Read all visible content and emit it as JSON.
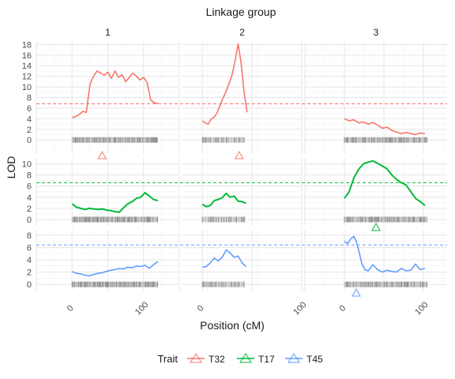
{
  "chart_data": {
    "type": "line",
    "title": "Linkage group",
    "xlabel": "Position (cM)",
    "ylabel": "LOD",
    "legend": {
      "title": "Trait",
      "position": "bottom",
      "entries": [
        {
          "name": "T32",
          "color": "#F8766D"
        },
        {
          "name": "T17",
          "color": "#00BA38"
        },
        {
          "name": "T45",
          "color": "#619CFF"
        }
      ]
    },
    "grid": true,
    "facets": {
      "columns": [
        {
          "label": "1",
          "xlim": [
            -50,
            150
          ],
          "x_ticks": [
            0,
            100
          ],
          "marker_range": [
            0,
            120
          ]
        },
        {
          "label": "2",
          "xlim": [
            -20,
            100
          ],
          "x_ticks": [
            0,
            100
          ],
          "marker_range": [
            0,
            43
          ]
        },
        {
          "label": "3",
          "xlim": [
            -50,
            130
          ],
          "x_ticks": [
            0,
            100
          ],
          "marker_range": [
            0,
            105
          ]
        }
      ],
      "rows": [
        {
          "trait": "T32",
          "ylim": [
            -2.5,
            18.5
          ],
          "y_ticks": [
            0,
            2,
            4,
            6,
            8,
            10,
            12,
            14,
            16,
            18
          ],
          "threshold": 6.8
        },
        {
          "trait": "T17",
          "ylim": [
            -1.0,
            11.2
          ],
          "y_ticks": [
            0,
            2,
            4,
            6,
            8,
            10
          ],
          "threshold": 6.6
        },
        {
          "trait": "T45",
          "ylim": [
            -1.0,
            9.0
          ],
          "y_ticks": [
            0,
            2,
            4,
            6,
            8
          ],
          "threshold": 6.4
        }
      ]
    },
    "series": [
      {
        "name": "T32",
        "group": "1",
        "x": [
          0,
          5,
          10,
          15,
          20,
          25,
          30,
          35,
          40,
          45,
          50,
          55,
          60,
          65,
          70,
          75,
          80,
          85,
          90,
          95,
          100,
          105,
          110,
          115,
          120
        ],
        "values": [
          4.2,
          4.4,
          4.8,
          5.4,
          5.2,
          10.5,
          12.0,
          13.0,
          12.6,
          12.2,
          12.8,
          11.6,
          13.0,
          11.8,
          12.3,
          11.0,
          11.8,
          12.6,
          12.0,
          11.3,
          11.8,
          10.8,
          7.5,
          7.0,
          6.9
        ]
      },
      {
        "name": "T32",
        "group": "2",
        "x": [
          0,
          3,
          6,
          9,
          12,
          15,
          18,
          21,
          24,
          27,
          30,
          33,
          36,
          39,
          42,
          45
        ],
        "values": [
          3.6,
          3.2,
          3.0,
          4.0,
          4.3,
          5.2,
          6.6,
          8.0,
          9.2,
          10.7,
          12.3,
          15.0,
          18.1,
          14.5,
          9.0,
          5.2
        ]
      },
      {
        "name": "T32",
        "group": "3",
        "x": [
          0,
          6,
          12,
          18,
          24,
          30,
          36,
          42,
          48,
          54,
          60,
          66,
          72,
          78,
          84,
          90,
          96,
          102
        ],
        "values": [
          4.0,
          3.6,
          3.8,
          3.2,
          3.4,
          3.0,
          3.3,
          2.8,
          2.2,
          2.4,
          1.8,
          1.5,
          1.2,
          1.4,
          1.2,
          1.0,
          1.3,
          1.2
        ]
      },
      {
        "name": "T17",
        "group": "1",
        "x": [
          0,
          6,
          12,
          18,
          24,
          30,
          36,
          42,
          48,
          54,
          60,
          66,
          72,
          78,
          84,
          90,
          96,
          102,
          108,
          114,
          120
        ],
        "values": [
          2.8,
          2.2,
          2.0,
          1.8,
          2.0,
          1.9,
          1.8,
          1.9,
          1.7,
          1.6,
          1.4,
          1.3,
          2.1,
          2.8,
          3.2,
          3.8,
          4.0,
          4.8,
          4.2,
          3.6,
          3.4
        ]
      },
      {
        "name": "T17",
        "group": "2",
        "x": [
          0,
          4,
          8,
          12,
          16,
          20,
          24,
          28,
          32,
          36,
          40,
          44
        ],
        "values": [
          2.7,
          2.3,
          2.5,
          3.4,
          3.6,
          3.9,
          4.7,
          4.0,
          4.2,
          3.3,
          3.2,
          2.9
        ]
      },
      {
        "name": "T17",
        "group": "3",
        "x": [
          0,
          6,
          12,
          18,
          24,
          30,
          36,
          42,
          48,
          54,
          60,
          66,
          72,
          78,
          84,
          90,
          96,
          102
        ],
        "values": [
          3.8,
          5.0,
          7.5,
          9.0,
          10.0,
          10.3,
          10.5,
          10.1,
          9.6,
          9.1,
          8.0,
          7.2,
          6.6,
          6.2,
          5.0,
          3.8,
          3.2,
          2.5
        ]
      },
      {
        "name": "T45",
        "group": "1",
        "x": [
          0,
          6,
          12,
          18,
          24,
          30,
          36,
          42,
          48,
          54,
          60,
          66,
          72,
          78,
          84,
          90,
          96,
          102,
          108,
          114,
          120
        ],
        "values": [
          2.1,
          1.8,
          1.7,
          1.5,
          1.4,
          1.6,
          1.8,
          1.9,
          2.1,
          2.3,
          2.4,
          2.6,
          2.5,
          2.8,
          2.7,
          3.0,
          2.9,
          3.1,
          2.6,
          3.2,
          3.7
        ]
      },
      {
        "name": "T45",
        "group": "2",
        "x": [
          0,
          4,
          8,
          12,
          16,
          20,
          24,
          28,
          32,
          36,
          40,
          44
        ],
        "values": [
          2.8,
          2.9,
          3.5,
          4.3,
          3.8,
          4.4,
          5.6,
          5.1,
          4.4,
          4.6,
          3.5,
          2.9
        ]
      },
      {
        "name": "T45",
        "group": "3",
        "x": [
          0,
          4,
          8,
          12,
          15,
          18,
          22,
          26,
          30,
          36,
          42,
          48,
          54,
          60,
          66,
          72,
          78,
          84,
          90,
          96,
          102
        ],
        "values": [
          7.0,
          6.6,
          7.4,
          7.8,
          7.0,
          5.6,
          3.4,
          2.4,
          2.2,
          3.2,
          2.4,
          2.0,
          2.3,
          2.1,
          2.0,
          2.6,
          2.2,
          2.3,
          3.3,
          2.4,
          2.6
        ]
      }
    ],
    "peaks": [
      {
        "trait": "T32",
        "group": "1",
        "x": 42
      },
      {
        "trait": "T32",
        "group": "2",
        "x": 37
      },
      {
        "trait": "T17",
        "group": "3",
        "x": 40
      },
      {
        "trait": "T45",
        "group": "3",
        "x": 15
      }
    ]
  }
}
